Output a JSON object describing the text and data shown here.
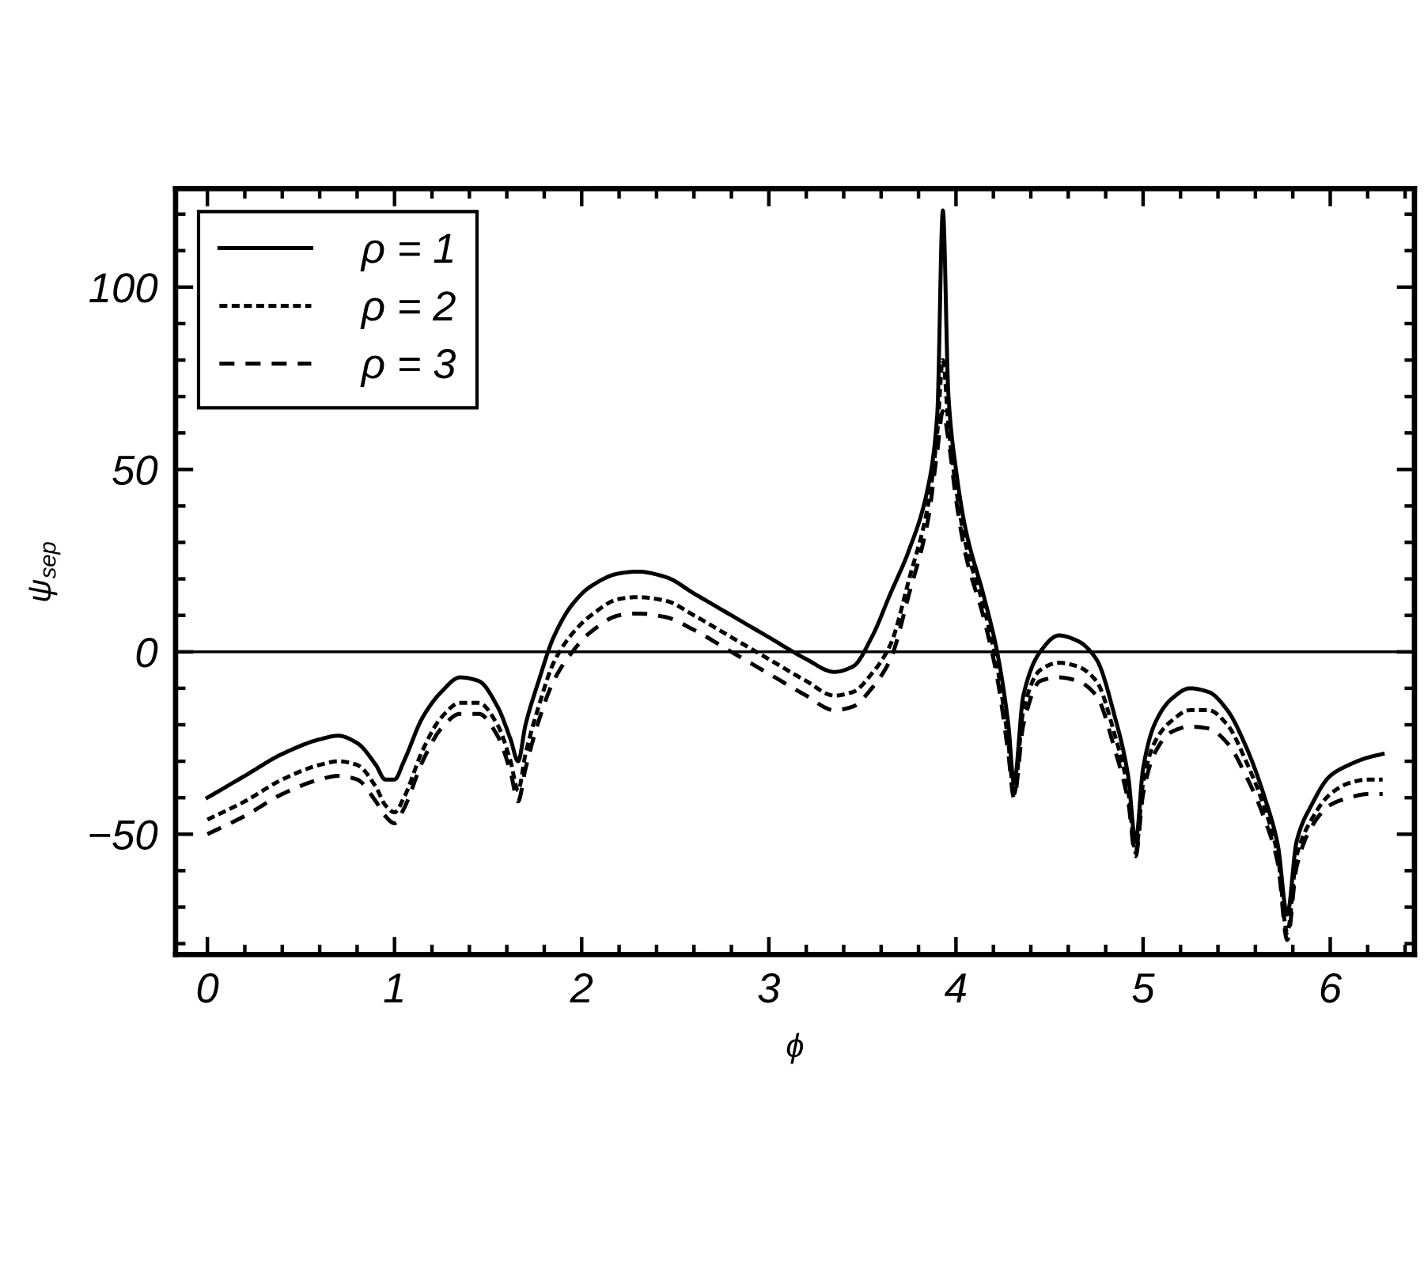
{
  "chart_data": {
    "type": "line",
    "xlabel": "ϕ",
    "ylabel": "ψ$_{sep}$",
    "xlim": [
      -0.17,
      6.45
    ],
    "ylim": [
      -83,
      127
    ],
    "xticks": [
      0,
      {
        "value": 0.2,
        "label": null
      },
      {
        "value": 0.4,
        "label": null
      },
      {
        "value": 0.6,
        "label": null
      },
      {
        "value": 0.8,
        "label": null
      },
      1,
      {
        "value": 1.2,
        "label": null
      },
      {
        "value": 1.4,
        "label": null
      },
      {
        "value": 1.6,
        "label": null
      },
      {
        "value": 1.8,
        "label": null
      },
      2,
      {
        "value": 2.2,
        "label": null
      },
      {
        "value": 2.4,
        "label": null
      },
      {
        "value": 2.6,
        "label": null
      },
      {
        "value": 2.8,
        "label": null
      },
      3,
      {
        "value": 3.2,
        "label": null
      },
      {
        "value": 3.4,
        "label": null
      },
      {
        "value": 3.6,
        "label": null
      },
      {
        "value": 3.8,
        "label": null
      },
      4,
      {
        "value": 4.2,
        "label": null
      },
      {
        "value": 4.4,
        "label": null
      },
      {
        "value": 4.6,
        "label": null
      },
      {
        "value": 4.8,
        "label": null
      },
      5,
      {
        "value": 5.2,
        "label": null
      },
      {
        "value": 5.4,
        "label": null
      },
      {
        "value": 5.6,
        "label": null
      },
      {
        "value": 5.8,
        "label": null
      },
      6,
      {
        "value": 6.2,
        "label": null
      },
      {
        "value": 6.4,
        "label": null
      }
    ],
    "yticks": [
      {
        "value": -80,
        "label": null
      },
      {
        "value": -70,
        "label": null
      },
      {
        "value": -60,
        "label": null
      },
      {
        "value": -50,
        "label": "−50"
      },
      {
        "value": -40,
        "label": null
      },
      {
        "value": -30,
        "label": null
      },
      {
        "value": -20,
        "label": null
      },
      {
        "value": -10,
        "label": null
      },
      0,
      {
        "value": 10,
        "label": null
      },
      {
        "value": 20,
        "label": null
      },
      {
        "value": 30,
        "label": null
      },
      {
        "value": 40,
        "label": null
      },
      50,
      {
        "value": 60,
        "label": null
      },
      {
        "value": 70,
        "label": null
      },
      {
        "value": 80,
        "label": null
      },
      {
        "value": 90,
        "label": null
      },
      100,
      {
        "value": 110,
        "label": null
      },
      {
        "value": 120,
        "label": null
      }
    ],
    "legend": "top left",
    "ref_lines": [
      {
        "axis": "y",
        "value": 0,
        "color": "#000000"
      }
    ],
    "x": [
      0,
      0.2,
      0.4,
      0.6,
      0.7,
      0.8,
      0.9,
      0.95,
      1.0,
      1.05,
      1.15,
      1.25,
      1.35,
      1.45,
      1.55,
      1.62,
      1.66,
      1.7,
      1.77,
      1.85,
      1.95,
      2.05,
      2.2,
      2.3,
      2.45,
      2.6,
      2.8,
      3.0,
      3.2,
      3.35,
      3.45,
      3.55,
      3.65,
      3.75,
      3.85,
      3.9,
      3.93,
      3.96,
      4.0,
      4.05,
      4.15,
      4.22,
      4.28,
      4.31,
      4.36,
      4.45,
      4.55,
      4.65,
      4.75,
      4.85,
      4.92,
      4.96,
      5.0,
      5.06,
      5.15,
      5.25,
      5.35,
      5.45,
      5.55,
      5.65,
      5.72,
      5.77,
      5.82,
      5.9,
      6.0,
      6.1,
      6.2,
      6.28
    ],
    "series": [
      {
        "name": "ρ = 1",
        "color": "#000000",
        "line_style": "solid",
        "values": [
          -40,
          -34,
          -28,
          -24,
          -23,
          -25,
          -31,
          -35,
          -35,
          -30,
          -18,
          -11,
          -7,
          -8,
          -15,
          -24,
          -30,
          -20,
          -8,
          4,
          13,
          18,
          21.5,
          22,
          20.5,
          16,
          10,
          4,
          -2,
          -5.5,
          -4,
          4,
          16,
          28,
          45,
          65,
          121,
          70,
          50,
          34,
          15,
          0,
          -20,
          -36,
          -12,
          0,
          4.5,
          3,
          -2,
          -18,
          -34,
          -52,
          -32,
          -20,
          -13,
          -10,
          -11,
          -16,
          -26,
          -40,
          -53,
          -72,
          -52,
          -42,
          -34,
          -31,
          -29,
          -28
        ]
      },
      {
        "name": "ρ = 2",
        "color": "#000000",
        "line_style": "dotted",
        "values": [
          -46,
          -41,
          -35,
          -31,
          -30,
          -31,
          -37,
          -42,
          -44,
          -40,
          -27,
          -18,
          -14,
          -14,
          -20,
          -30,
          -38,
          -28,
          -15,
          -3,
          5,
          10,
          14.5,
          15,
          14,
          10,
          4,
          -2,
          -8,
          -12,
          -11,
          -6,
          2,
          20,
          40,
          60,
          80,
          62,
          45,
          30,
          12,
          -4,
          -25,
          -39,
          -16,
          -5,
          -3,
          -4,
          -8,
          -23,
          -38,
          -55,
          -36,
          -25,
          -19,
          -16,
          -16,
          -20,
          -30,
          -43,
          -56,
          -77,
          -56,
          -46,
          -39,
          -36,
          -35,
          -35
        ]
      },
      {
        "name": "ρ = 3",
        "color": "#000000",
        "line_style": "dashed",
        "values": [
          -50,
          -45,
          -39,
          -35,
          -34,
          -35,
          -41,
          -45,
          -47,
          -43,
          -30,
          -21,
          -17,
          -17,
          -23,
          -33,
          -41,
          -32,
          -19,
          -8,
          0,
          5.5,
          10,
          10.5,
          9.5,
          6,
          0,
          -6,
          -12,
          -16,
          -15,
          -10,
          -2,
          16,
          36,
          55,
          66,
          58,
          42,
          27,
          9,
          -7,
          -28,
          -40,
          -20,
          -8,
          -7,
          -8,
          -12,
          -27,
          -41,
          -56,
          -39,
          -28,
          -22,
          -20.5,
          -21,
          -25,
          -34,
          -46,
          -58,
          -79,
          -59,
          -48,
          -42,
          -40,
          -39,
          -39
        ]
      }
    ]
  }
}
